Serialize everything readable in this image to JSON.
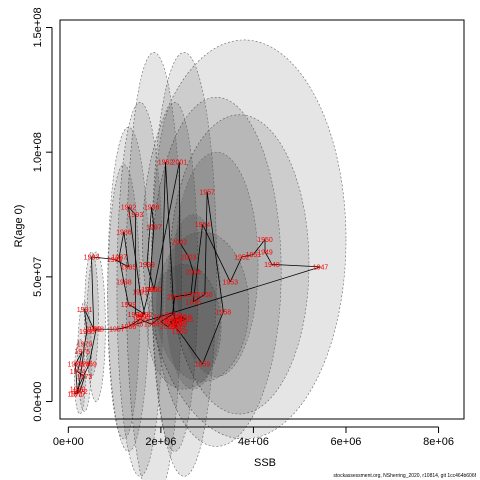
{
  "chart_data": {
    "type": "scatter",
    "title": "",
    "xlabel": "SSB",
    "ylabel": "R(age 0)",
    "xlim": [
      -180000.0,
      8550000.0
    ],
    "ylim": [
      -7000000.0,
      153000000.0
    ],
    "x_ticks": [
      {
        "value": 0,
        "label": "0e+00"
      },
      {
        "value": 2000000,
        "label": "2e+06"
      },
      {
        "value": 4000000,
        "label": "4e+06"
      },
      {
        "value": 6000000,
        "label": "6e+06"
      },
      {
        "value": 8000000,
        "label": "8e+06"
      }
    ],
    "y_ticks": [
      {
        "value": 0,
        "label": "0.0e+00"
      },
      {
        "value": 50000000,
        "label": "5.0e+07"
      },
      {
        "value": 100000000,
        "label": "1.0e+08"
      },
      {
        "value": 150000000,
        "label": "1.5e+08"
      }
    ],
    "grid": false,
    "colors": {
      "trajectory": "#000000",
      "year_labels": "#ff0000",
      "ellipse_fill": "#000000",
      "ellipse_stroke": "#666666"
    },
    "series": [
      {
        "kind": "trajectory",
        "points": [
          {
            "year": "1946",
            "ssb": 1450000,
            "recruits": 31000000
          },
          {
            "year": "1947",
            "ssb": 5450000,
            "recruits": 54000000
          },
          {
            "year": "1948",
            "ssb": 4400000,
            "recruits": 55000000
          },
          {
            "year": "1949",
            "ssb": 4250000,
            "recruits": 60000000
          },
          {
            "year": "1950",
            "ssb": 4250000,
            "recruits": 65000000
          },
          {
            "year": "1951",
            "ssb": 4000000,
            "recruits": 59000000
          },
          {
            "year": "1952",
            "ssb": 3750000,
            "recruits": 58000000
          },
          {
            "year": "1953",
            "ssb": 3500000,
            "recruits": 48000000
          },
          {
            "year": "1954",
            "ssb": 2900000,
            "recruits": 71000000
          },
          {
            "year": "1955",
            "ssb": 2700000,
            "recruits": 40000000
          },
          {
            "year": "1956",
            "ssb": 2950000,
            "recruits": 43000000
          },
          {
            "year": "1957",
            "ssb": 3000000,
            "recruits": 84000000
          },
          {
            "year": "1958",
            "ssb": 3350000,
            "recruits": 36000000
          },
          {
            "year": "1959",
            "ssb": 2900000,
            "recruits": 15000000
          },
          {
            "year": "1960",
            "ssb": 2400000,
            "recruits": 28000000
          },
          {
            "year": "1961",
            "ssb": 2300000,
            "recruits": 30000000
          },
          {
            "year": "1962",
            "ssb": 2100000,
            "recruits": 96000000
          },
          {
            "year": "1963",
            "ssb": 2000000,
            "recruits": 34000000
          },
          {
            "year": "1964",
            "ssb": 1800000,
            "recruits": 31000000
          },
          {
            "year": "1965",
            "ssb": 1550000,
            "recruits": 33000000
          },
          {
            "year": "1966",
            "ssb": 1300000,
            "recruits": 30000000
          },
          {
            "year": "1967",
            "ssb": 1050000,
            "recruits": 29000000
          },
          {
            "year": "1968",
            "ssb": 600000,
            "recruits": 29000000
          },
          {
            "year": "1969",
            "ssb": 450000,
            "recruits": 15000000
          },
          {
            "year": "1970",
            "ssb": 200000,
            "recruits": 5000000
          },
          {
            "year": "1971",
            "ssb": 150000,
            "recruits": 3000000
          },
          {
            "year": "1972",
            "ssb": 250000,
            "recruits": 4000000
          },
          {
            "year": "1973",
            "ssb": 350000,
            "recruits": 10000000
          },
          {
            "year": "1974",
            "ssb": 200000,
            "recruits": 12000000
          },
          {
            "year": "1975",
            "ssb": 300000,
            "recruits": 20000000
          },
          {
            "year": "1976",
            "ssb": 150000,
            "recruits": 15000000
          },
          {
            "year": "1977",
            "ssb": 200000,
            "recruits": 3000000
          },
          {
            "year": "1978",
            "ssb": 300000,
            "recruits": 15000000
          },
          {
            "year": "1979",
            "ssb": 350000,
            "recruits": 23000000
          },
          {
            "year": "1980",
            "ssb": 400000,
            "recruits": 28000000
          },
          {
            "year": "1981",
            "ssb": 350000,
            "recruits": 37000000
          },
          {
            "year": "1982",
            "ssb": 550000,
            "recruits": 29000000
          },
          {
            "year": "1983",
            "ssb": 500000,
            "recruits": 58000000
          },
          {
            "year": "1984",
            "ssb": 1000000,
            "recruits": 57000000
          },
          {
            "year": "1985",
            "ssb": 1300000,
            "recruits": 54000000
          },
          {
            "year": "1986",
            "ssb": 1200000,
            "recruits": 68000000
          },
          {
            "year": "1987",
            "ssb": 1100000,
            "recruits": 58000000
          },
          {
            "year": "1988",
            "ssb": 1200000,
            "recruits": 48000000
          },
          {
            "year": "1989",
            "ssb": 1300000,
            "recruits": 39000000
          },
          {
            "year": "1990",
            "ssb": 1650000,
            "recruits": 35000000
          },
          {
            "year": "1991",
            "ssb": 1550000,
            "recruits": 44000000
          },
          {
            "year": "1992",
            "ssb": 1300000,
            "recruits": 78000000
          },
          {
            "year": "1993",
            "ssb": 1450000,
            "recruits": 75000000
          },
          {
            "year": "1994",
            "ssb": 1450000,
            "recruits": 35000000
          },
          {
            "year": "1995",
            "ssb": 1600000,
            "recruits": 34000000
          },
          {
            "year": "1996",
            "ssb": 1750000,
            "recruits": 45000000
          },
          {
            "year": "1997",
            "ssb": 1850000,
            "recruits": 70000000
          },
          {
            "year": "1998",
            "ssb": 1800000,
            "recruits": 78000000
          },
          {
            "year": "1999",
            "ssb": 1700000,
            "recruits": 55000000
          },
          {
            "year": "2000",
            "ssb": 1850000,
            "recruits": 45000000
          },
          {
            "year": "2001",
            "ssb": 2400000,
            "recruits": 96000000
          },
          {
            "year": "2002",
            "ssb": 2400000,
            "recruits": 64000000
          },
          {
            "year": "2003",
            "ssb": 2600000,
            "recruits": 58000000
          },
          {
            "year": "2004",
            "ssb": 2700000,
            "recruits": 52000000
          },
          {
            "year": "2005",
            "ssb": 2650000,
            "recruits": 43000000
          },
          {
            "year": "2006",
            "ssb": 2300000,
            "recruits": 42000000
          },
          {
            "year": "2007",
            "ssb": 2250000,
            "recruits": 35000000
          },
          {
            "year": "2008",
            "ssb": 2000000,
            "recruits": 32000000
          },
          {
            "year": "2009",
            "ssb": 2150000,
            "recruits": 30000000
          },
          {
            "year": "2010",
            "ssb": 2400000,
            "recruits": 34000000
          },
          {
            "year": "2011",
            "ssb": 2550000,
            "recruits": 33000000
          },
          {
            "year": "2012",
            "ssb": 2350000,
            "recruits": 32000000
          },
          {
            "year": "2013",
            "ssb": 2400000,
            "recruits": 31000000
          },
          {
            "year": "2014",
            "ssb": 2300000,
            "recruits": 33000000
          },
          {
            "year": "2015",
            "ssb": 2350000,
            "recruits": 30000000
          },
          {
            "year": "2016",
            "ssb": 2200000,
            "recruits": 32000000
          },
          {
            "year": "2017",
            "ssb": 2300000,
            "recruits": 33000000
          },
          {
            "year": "2018",
            "ssb": 2500000,
            "recruits": 34000000
          },
          {
            "year": "2019",
            "ssb": 2400000,
            "recruits": 32000000
          }
        ]
      }
    ],
    "uncertainty_ellipses": [
      {
        "cx": 3800000,
        "cy": 65000000,
        "rx": 2200000,
        "ry": 80000000
      },
      {
        "cx": 3700000,
        "cy": 55000000,
        "rx": 1500000,
        "ry": 60000000
      },
      {
        "cx": 3200000,
        "cy": 52000000,
        "rx": 1400000,
        "ry": 70000000
      },
      {
        "cx": 2500000,
        "cy": 55000000,
        "rx": 700000,
        "ry": 85000000
      },
      {
        "cx": 2300000,
        "cy": 50000000,
        "rx": 500000,
        "ry": 70000000
      },
      {
        "cx": 1850000,
        "cy": 50000000,
        "rx": 600000,
        "ry": 90000000
      },
      {
        "cx": 1550000,
        "cy": 45000000,
        "rx": 500000,
        "ry": 75000000
      },
      {
        "cx": 1300000,
        "cy": 45000000,
        "rx": 450000,
        "ry": 65000000
      },
      {
        "cx": 1200000,
        "cy": 40000000,
        "rx": 350000,
        "ry": 55000000
      },
      {
        "cx": 2500000,
        "cy": 30000000,
        "rx": 800000,
        "ry": 25000000
      },
      {
        "cx": 2900000,
        "cy": 38000000,
        "rx": 1000000,
        "ry": 30000000
      },
      {
        "cx": 600000,
        "cy": 30000000,
        "rx": 200000,
        "ry": 30000000
      },
      {
        "cx": 500000,
        "cy": 35000000,
        "rx": 150000,
        "ry": 25000000
      },
      {
        "cx": 350000,
        "cy": 18000000,
        "rx": 150000,
        "ry": 22000000
      },
      {
        "cx": 250000,
        "cy": 10000000,
        "rx": 120000,
        "ry": 15000000
      },
      {
        "cx": 3200000,
        "cy": 55000000,
        "rx": 900000,
        "ry": 45000000
      },
      {
        "cx": 2700000,
        "cy": 40000000,
        "rx": 600000,
        "ry": 35000000
      }
    ],
    "source_note": "stockassessment.org, NSherring_2020, r10814, git 1cc464b606f"
  }
}
